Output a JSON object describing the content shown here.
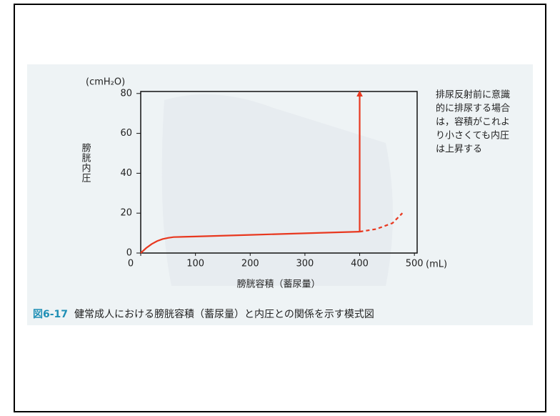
{
  "chart_data": {
    "type": "line",
    "y_unit": "(cmH₂O)",
    "y_label": "膀胱内圧",
    "x_unit": "(mL)",
    "x_label": "膀胱容積（蓄尿量）",
    "annotation": [
      "排尿反射前に意識",
      "的に排尿する場合",
      "は，容積がこれよ",
      "り小さくても内圧",
      "は上昇する"
    ],
    "caption_number": "図6-17",
    "caption": "健常成人における膀胱容積（蓄尿量）と内圧との関係を示す模式図",
    "xlim": [
      0,
      505
    ],
    "ylim": [
      0,
      81
    ],
    "xticks": [
      0,
      100,
      200,
      300,
      400,
      500
    ],
    "yticks": [
      0,
      20,
      40,
      60,
      80
    ],
    "lines": [
      {
        "style": "solid",
        "color": "#e8381f",
        "x": [
          0,
          10,
          20,
          30,
          40,
          50,
          60,
          100,
          200,
          300,
          400
        ],
        "values": [
          0,
          2.5,
          4.5,
          6,
          7,
          7.6,
          8,
          8.3,
          9.1,
          9.9,
          10.7
        ]
      },
      {
        "style": "dashed",
        "color": "#e8381f",
        "x": [
          400,
          430,
          460,
          478
        ],
        "values": [
          10.7,
          12,
          15,
          20
        ]
      },
      {
        "style": "arrow",
        "color": "#e8381f",
        "x": [
          400,
          400
        ],
        "values": [
          10.7,
          80
        ]
      }
    ]
  }
}
